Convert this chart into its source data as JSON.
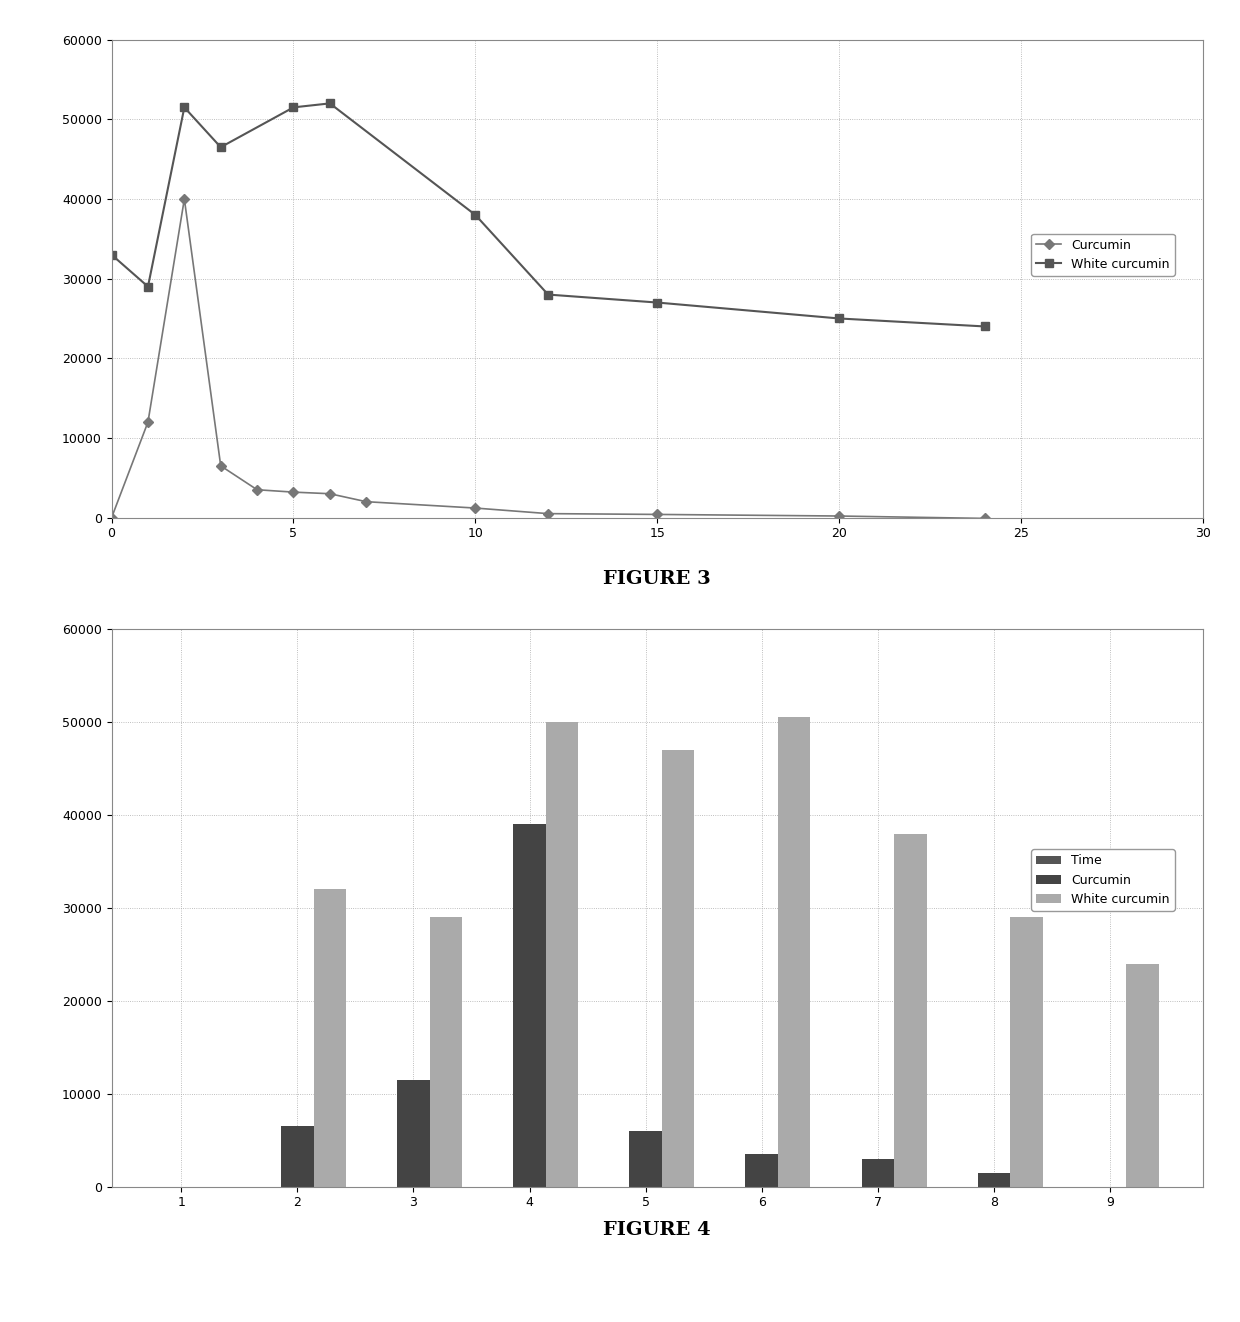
{
  "fig3": {
    "curcumin_x": [
      0,
      1,
      2,
      3,
      4,
      5,
      6,
      7,
      10,
      12,
      15,
      20,
      24
    ],
    "curcumin_y": [
      0,
      12000,
      40000,
      6500,
      3500,
      3200,
      3000,
      2000,
      1200,
      500,
      400,
      200,
      -100
    ],
    "white_curcumin_x": [
      0,
      1,
      2,
      3,
      5,
      6,
      10,
      12,
      15,
      20,
      24
    ],
    "white_curcumin_y": [
      33000,
      29000,
      51500,
      46500,
      51500,
      52000,
      38000,
      28000,
      27000,
      25000,
      24000
    ],
    "xlim": [
      0,
      30
    ],
    "ylim": [
      0,
      60000
    ],
    "xticks": [
      0,
      5,
      10,
      15,
      20,
      25,
      30
    ],
    "yticks": [
      0,
      10000,
      20000,
      30000,
      40000,
      50000,
      60000
    ],
    "curcumin_color": "#777777",
    "white_curcumin_color": "#555555",
    "curcumin_label": "Curcumin",
    "white_curcumin_label": "White curcumin",
    "marker_curcumin": "D",
    "marker_white": "s"
  },
  "fig3_title": "FIGURE 3",
  "fig4": {
    "categories": [
      1,
      2,
      3,
      4,
      5,
      6,
      7,
      8,
      9
    ],
    "time_values": [
      0,
      0,
      0,
      0,
      0,
      0,
      0,
      0,
      0
    ],
    "curcumin_values": [
      0,
      6500,
      11500,
      39000,
      6000,
      3500,
      3000,
      1500,
      0
    ],
    "white_curcumin_values": [
      0,
      32000,
      29000,
      50000,
      47000,
      50500,
      38000,
      29000,
      24000
    ],
    "ylim": [
      0,
      60000
    ],
    "yticks": [
      0,
      10000,
      20000,
      30000,
      40000,
      50000,
      60000
    ],
    "time_color": "#555555",
    "curcumin_color": "#444444",
    "white_curcumin_color": "#aaaaaa",
    "time_label": "Time",
    "curcumin_label": "Curcumin",
    "white_curcumin_label": "White curcumin"
  },
  "fig4_title": "FIGURE 4",
  "background_color": "#ffffff",
  "chart_bg": "#ffffff"
}
